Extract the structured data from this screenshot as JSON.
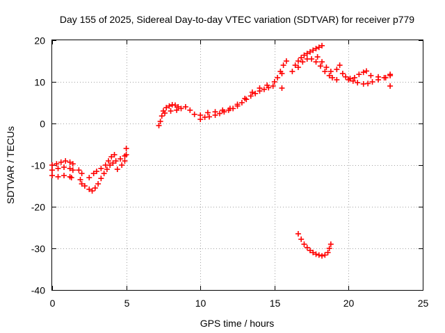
{
  "chart_data": {
    "type": "scatter",
    "title": "Day 155 of 2025, Sidereal Day-to-day VTEC variation (SDTVAR) for receiver p779",
    "xlabel": "GPS time / hours",
    "ylabel": "SDTVAR / TECUs",
    "xlim": [
      0,
      25
    ],
    "ylim": [
      -40,
      20
    ],
    "xticks": [
      "0",
      "5",
      "10",
      "15",
      "20",
      "25"
    ],
    "yticks": [
      "-40",
      "-30",
      "-20",
      "-10",
      "0",
      "10",
      "20"
    ],
    "grid": true,
    "marker": "plus",
    "color": "#ff0000",
    "series": [
      {
        "name": "SDTVAR",
        "points": [
          [
            0.0,
            -10.0
          ],
          [
            0.3,
            -9.7
          ],
          [
            0.6,
            -9.3
          ],
          [
            0.9,
            -9.0
          ],
          [
            1.2,
            -9.3
          ],
          [
            1.4,
            -9.7
          ],
          [
            0.0,
            -11.2
          ],
          [
            0.4,
            -10.8
          ],
          [
            0.8,
            -10.5
          ],
          [
            1.2,
            -10.8
          ],
          [
            1.4,
            -11.2
          ],
          [
            0.0,
            -12.5
          ],
          [
            0.4,
            -12.8
          ],
          [
            0.8,
            -12.5
          ],
          [
            1.2,
            -12.8
          ],
          [
            1.3,
            -13.0
          ],
          [
            1.8,
            -11.2
          ],
          [
            2.0,
            -12.0
          ],
          [
            1.9,
            -13.5
          ],
          [
            2.0,
            -14.5
          ],
          [
            2.2,
            -15.0
          ],
          [
            2.5,
            -15.8
          ],
          [
            2.7,
            -16.2
          ],
          [
            2.9,
            -15.5
          ],
          [
            3.1,
            -14.5
          ],
          [
            3.3,
            -13.2
          ],
          [
            3.5,
            -12.0
          ],
          [
            3.7,
            -11.0
          ],
          [
            3.9,
            -10.0
          ],
          [
            4.1,
            -9.5
          ],
          [
            4.3,
            -9.0
          ],
          [
            4.6,
            -8.5
          ],
          [
            4.9,
            -7.8
          ],
          [
            2.5,
            -13.0
          ],
          [
            2.8,
            -12.0
          ],
          [
            3.0,
            -11.5
          ],
          [
            3.3,
            -10.8
          ],
          [
            3.6,
            -10.0
          ],
          [
            3.8,
            -9.0
          ],
          [
            4.0,
            -8.0
          ],
          [
            4.2,
            -7.5
          ],
          [
            4.4,
            -11.0
          ],
          [
            4.7,
            -10.0
          ],
          [
            4.9,
            -9.0
          ],
          [
            5.0,
            -7.5
          ],
          [
            5.0,
            -6.0
          ],
          [
            7.2,
            -0.5
          ],
          [
            7.3,
            0.5
          ],
          [
            7.4,
            1.8
          ],
          [
            7.5,
            3.0
          ],
          [
            7.7,
            3.8
          ],
          [
            7.9,
            4.2
          ],
          [
            8.1,
            4.5
          ],
          [
            8.3,
            4.4
          ],
          [
            8.5,
            4.0
          ],
          [
            8.7,
            3.6
          ],
          [
            7.6,
            2.5
          ],
          [
            8.0,
            3.0
          ],
          [
            8.4,
            3.2
          ],
          [
            9.0,
            4.0
          ],
          [
            9.3,
            3.2
          ],
          [
            9.6,
            2.2
          ],
          [
            10.0,
            2.0
          ],
          [
            10.0,
            1.0
          ],
          [
            10.3,
            1.5
          ],
          [
            10.6,
            1.6
          ],
          [
            11.0,
            2.0
          ],
          [
            11.3,
            2.4
          ],
          [
            11.6,
            2.8
          ],
          [
            11.9,
            3.2
          ],
          [
            12.2,
            3.6
          ],
          [
            12.5,
            4.2
          ],
          [
            12.8,
            5.0
          ],
          [
            13.1,
            5.8
          ],
          [
            13.4,
            6.6
          ],
          [
            13.7,
            7.2
          ],
          [
            14.0,
            7.8
          ],
          [
            14.3,
            8.2
          ],
          [
            14.6,
            8.6
          ],
          [
            14.9,
            9.0
          ],
          [
            10.5,
            2.6
          ],
          [
            11.0,
            2.8
          ],
          [
            11.5,
            3.2
          ],
          [
            12.0,
            3.6
          ],
          [
            12.5,
            4.6
          ],
          [
            13.0,
            6.0
          ],
          [
            13.5,
            7.5
          ],
          [
            14.0,
            8.5
          ],
          [
            14.5,
            9.2
          ],
          [
            15.0,
            10.0
          ],
          [
            15.2,
            11.0
          ],
          [
            15.4,
            12.5
          ],
          [
            15.6,
            14.0
          ],
          [
            15.8,
            15.0
          ],
          [
            15.5,
            8.5
          ],
          [
            15.5,
            12.0
          ],
          [
            16.2,
            12.5
          ],
          [
            16.4,
            14.0
          ],
          [
            16.6,
            15.0
          ],
          [
            16.8,
            15.8
          ],
          [
            17.0,
            16.4
          ],
          [
            17.2,
            16.8
          ],
          [
            17.4,
            17.2
          ],
          [
            17.6,
            17.6
          ],
          [
            17.8,
            18.0
          ],
          [
            18.0,
            18.3
          ],
          [
            18.2,
            18.7
          ],
          [
            16.6,
            13.5
          ],
          [
            16.9,
            14.8
          ],
          [
            17.2,
            15.5
          ],
          [
            17.5,
            15.5
          ],
          [
            17.8,
            14.8
          ],
          [
            18.1,
            13.8
          ],
          [
            18.4,
            12.5
          ],
          [
            18.7,
            11.5
          ],
          [
            18.9,
            11.0
          ],
          [
            17.9,
            16.0
          ],
          [
            18.2,
            14.8
          ],
          [
            18.5,
            13.5
          ],
          [
            18.8,
            12.5
          ],
          [
            19.2,
            13.0
          ],
          [
            19.4,
            14.0
          ],
          [
            19.2,
            10.5
          ],
          [
            19.6,
            12.0
          ],
          [
            19.8,
            11.2
          ],
          [
            20.1,
            10.8
          ],
          [
            20.4,
            11.0
          ],
          [
            20.7,
            11.8
          ],
          [
            21.0,
            12.3
          ],
          [
            21.2,
            12.6
          ],
          [
            20.0,
            10.5
          ],
          [
            20.3,
            10.2
          ],
          [
            20.6,
            9.8
          ],
          [
            21.0,
            9.5
          ],
          [
            21.3,
            9.6
          ],
          [
            21.6,
            10.0
          ],
          [
            22.0,
            10.5
          ],
          [
            22.4,
            11.0
          ],
          [
            22.8,
            11.5
          ],
          [
            21.5,
            11.5
          ],
          [
            22.0,
            11.2
          ],
          [
            22.5,
            11.0
          ],
          [
            22.8,
            11.8
          ],
          [
            22.8,
            9.0
          ],
          [
            16.6,
            -26.5
          ],
          [
            16.8,
            -27.8
          ],
          [
            17.0,
            -29.0
          ],
          [
            17.2,
            -29.8
          ],
          [
            17.4,
            -30.5
          ],
          [
            17.6,
            -31.0
          ],
          [
            17.8,
            -31.4
          ],
          [
            18.0,
            -31.6
          ],
          [
            18.2,
            -31.8
          ],
          [
            18.4,
            -31.6
          ],
          [
            18.6,
            -31.0
          ],
          [
            18.7,
            -30.0
          ],
          [
            18.8,
            -29.0
          ]
        ]
      }
    ]
  }
}
